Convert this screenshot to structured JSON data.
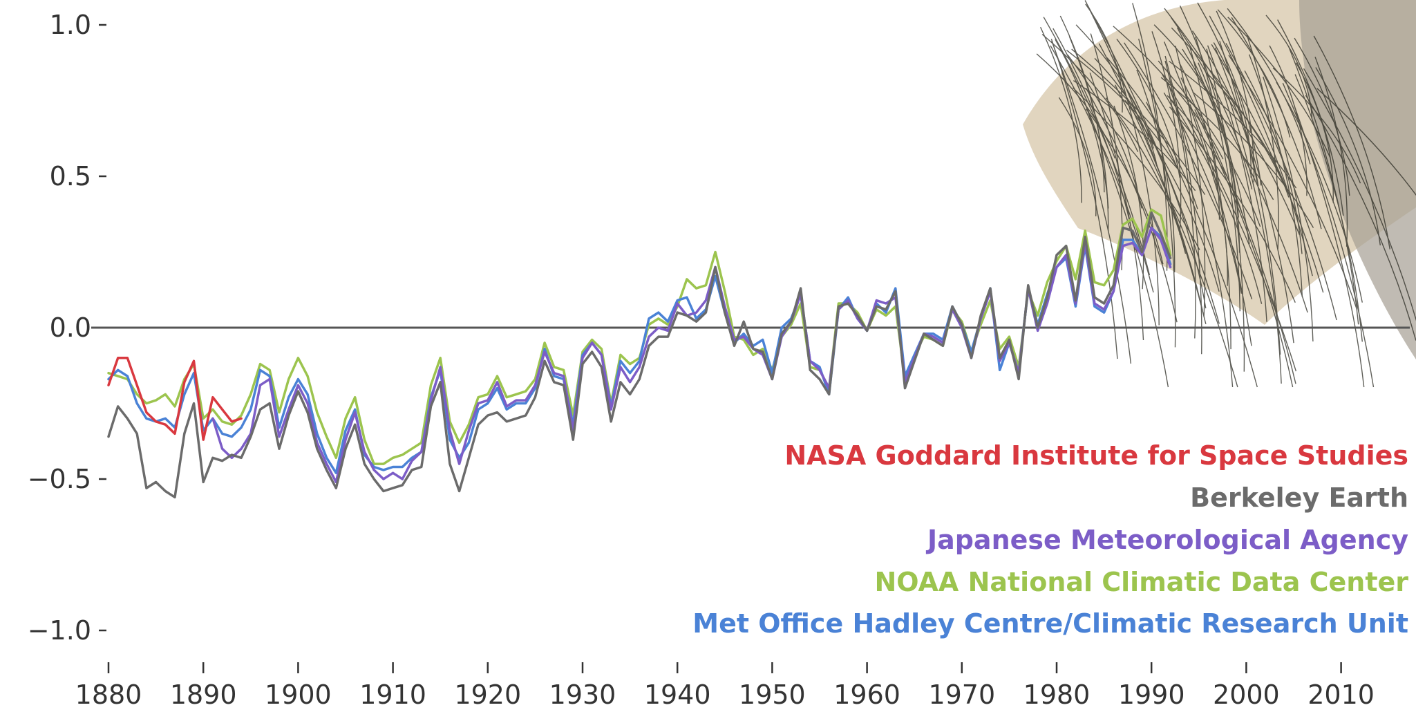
{
  "chart_data": {
    "type": "line",
    "title": "",
    "xlabel": "",
    "ylabel": "",
    "xlim": [
      1878,
      2017
    ],
    "ylim": [
      -1.0,
      1.0
    ],
    "zero_line": true,
    "grid": false,
    "legend_placement": "lower-right",
    "y_ticks": [
      1.0,
      0.5,
      0.0,
      -0.5,
      -1.0
    ],
    "y_tick_labels": [
      "1.0",
      "0.5",
      "0.0",
      "−0.5",
      "−1.0"
    ],
    "x_ticks": [
      1880,
      1890,
      1900,
      1910,
      1920,
      1930,
      1940,
      1950,
      1960,
      1970,
      1980,
      1990,
      2000,
      2010
    ],
    "x_tick_labels": [
      "1880",
      "1890",
      "1900",
      "1910",
      "1920",
      "1930",
      "1940",
      "1950",
      "1960",
      "1970",
      "1980",
      "1990",
      "2000",
      "2010"
    ],
    "series": [
      {
        "name": "NASA Goddard Institute for Space Studies",
        "color": "#d9383f",
        "x": [
          1880,
          1881,
          1882,
          1883,
          1884,
          1885,
          1886,
          1887,
          1888,
          1889,
          1890,
          1891,
          1892,
          1893,
          1894
        ],
        "y": [
          -0.19,
          -0.1,
          -0.1,
          -0.19,
          -0.28,
          -0.31,
          -0.32,
          -0.35,
          -0.18,
          -0.11,
          -0.37,
          -0.23,
          -0.27,
          -0.31,
          -0.3
        ]
      },
      {
        "name": "Berkeley Earth",
        "color": "#6b6b6b",
        "x": [
          1880,
          1881,
          1882,
          1883,
          1884,
          1885,
          1886,
          1887,
          1888,
          1889,
          1890,
          1891,
          1892,
          1893,
          1894,
          1895,
          1896,
          1897,
          1898,
          1899,
          1900,
          1901,
          1902,
          1903,
          1904,
          1905,
          1906,
          1907,
          1908,
          1909,
          1910,
          1911,
          1912,
          1913,
          1914,
          1915,
          1916,
          1917,
          1918,
          1919,
          1920,
          1921,
          1922,
          1923,
          1924,
          1925,
          1926,
          1927,
          1928,
          1929,
          1930,
          1931,
          1932,
          1933,
          1934,
          1935,
          1936,
          1937,
          1938,
          1939,
          1940,
          1941,
          1942,
          1943,
          1944,
          1945,
          1946,
          1947,
          1948,
          1949,
          1950,
          1951,
          1952,
          1953,
          1954,
          1955,
          1956,
          1957,
          1958,
          1959,
          1960,
          1961,
          1962,
          1963,
          1964,
          1965,
          1966,
          1967,
          1968,
          1969,
          1970,
          1971,
          1972,
          1973,
          1974,
          1975,
          1976,
          1977,
          1978,
          1979,
          1980,
          1981,
          1982,
          1983,
          1984,
          1985,
          1986,
          1987,
          1988,
          1989,
          1990,
          1991,
          1992
        ],
        "y": [
          -0.36,
          -0.26,
          -0.3,
          -0.35,
          -0.53,
          -0.51,
          -0.54,
          -0.56,
          -0.35,
          -0.25,
          -0.51,
          -0.43,
          -0.44,
          -0.42,
          -0.43,
          -0.36,
          -0.27,
          -0.25,
          -0.4,
          -0.29,
          -0.21,
          -0.28,
          -0.4,
          -0.47,
          -0.53,
          -0.4,
          -0.32,
          -0.45,
          -0.5,
          -0.54,
          -0.53,
          -0.52,
          -0.47,
          -0.46,
          -0.26,
          -0.18,
          -0.45,
          -0.54,
          -0.43,
          -0.32,
          -0.29,
          -0.28,
          -0.31,
          -0.3,
          -0.29,
          -0.23,
          -0.11,
          -0.18,
          -0.19,
          -0.37,
          -0.12,
          -0.08,
          -0.13,
          -0.31,
          -0.18,
          -0.22,
          -0.17,
          -0.06,
          -0.03,
          -0.03,
          0.05,
          0.04,
          0.02,
          0.05,
          0.2,
          0.05,
          -0.06,
          0.02,
          -0.07,
          -0.08,
          -0.17,
          -0.02,
          0.02,
          0.13,
          -0.14,
          -0.17,
          -0.22,
          0.07,
          0.08,
          0.04,
          -0.01,
          0.07,
          0.06,
          0.12,
          -0.2,
          -0.11,
          -0.02,
          -0.04,
          -0.06,
          0.07,
          0.01,
          -0.1,
          0.04,
          0.13,
          -0.1,
          -0.04,
          -0.17,
          0.14,
          0.0,
          0.1,
          0.24,
          0.27,
          0.09,
          0.3,
          0.1,
          0.08,
          0.14,
          0.33,
          0.32,
          0.25,
          0.38,
          0.31,
          0.23
        ]
      },
      {
        "name": "Japanese Meteorological Agency",
        "color": "#7c5dc7",
        "x": [
          1891,
          1892,
          1893,
          1894,
          1895,
          1896,
          1897,
          1898,
          1899,
          1900,
          1901,
          1902,
          1903,
          1904,
          1905,
          1906,
          1907,
          1908,
          1909,
          1910,
          1911,
          1912,
          1913,
          1914,
          1915,
          1916,
          1917,
          1918,
          1919,
          1920,
          1921,
          1922,
          1923,
          1924,
          1925,
          1926,
          1927,
          1928,
          1929,
          1930,
          1931,
          1932,
          1933,
          1934,
          1935,
          1936,
          1937,
          1938,
          1939,
          1940,
          1941,
          1942,
          1943,
          1944,
          1945,
          1946,
          1947,
          1948,
          1949,
          1950,
          1951,
          1952,
          1953,
          1954,
          1955,
          1956,
          1957,
          1958,
          1959,
          1960,
          1961,
          1962,
          1963,
          1964,
          1965,
          1966,
          1967,
          1968,
          1969,
          1970,
          1971,
          1972,
          1973,
          1974,
          1975,
          1976,
          1977,
          1978,
          1979,
          1980,
          1981,
          1982,
          1983,
          1984,
          1985,
          1986,
          1987,
          1988,
          1989,
          1990,
          1991,
          1992
        ],
        "y": [
          -0.3,
          -0.4,
          -0.43,
          -0.4,
          -0.35,
          -0.19,
          -0.17,
          -0.36,
          -0.27,
          -0.19,
          -0.25,
          -0.38,
          -0.45,
          -0.51,
          -0.37,
          -0.28,
          -0.41,
          -0.47,
          -0.5,
          -0.48,
          -0.5,
          -0.44,
          -0.41,
          -0.24,
          -0.13,
          -0.34,
          -0.45,
          -0.34,
          -0.25,
          -0.24,
          -0.18,
          -0.26,
          -0.24,
          -0.24,
          -0.19,
          -0.08,
          -0.15,
          -0.16,
          -0.34,
          -0.1,
          -0.05,
          -0.09,
          -0.27,
          -0.13,
          -0.18,
          -0.13,
          -0.03,
          0.0,
          -0.01,
          0.08,
          0.04,
          0.05,
          0.09,
          0.2,
          0.07,
          -0.04,
          -0.03,
          -0.07,
          -0.09,
          -0.17,
          -0.03,
          0.02,
          0.11,
          -0.11,
          -0.14,
          -0.2,
          0.06,
          0.09,
          0.03,
          -0.01,
          0.09,
          0.08,
          0.1,
          -0.18,
          -0.1,
          -0.02,
          -0.03,
          -0.05,
          0.06,
          0.0,
          -0.1,
          0.03,
          0.12,
          -0.11,
          -0.05,
          -0.15,
          0.13,
          -0.01,
          0.08,
          0.2,
          0.24,
          0.08,
          0.28,
          0.08,
          0.06,
          0.12,
          0.27,
          0.28,
          0.24,
          0.33,
          0.29,
          0.2
        ]
      },
      {
        "name": "NOAA National Climatic Data Center",
        "color": "#9cc44e",
        "x": [
          1880,
          1881,
          1882,
          1883,
          1884,
          1885,
          1886,
          1887,
          1888,
          1889,
          1890,
          1891,
          1892,
          1893,
          1894,
          1895,
          1896,
          1897,
          1898,
          1899,
          1900,
          1901,
          1902,
          1903,
          1904,
          1905,
          1906,
          1907,
          1908,
          1909,
          1910,
          1911,
          1912,
          1913,
          1914,
          1915,
          1916,
          1917,
          1918,
          1919,
          1920,
          1921,
          1922,
          1923,
          1924,
          1925,
          1926,
          1927,
          1928,
          1929,
          1930,
          1931,
          1932,
          1933,
          1934,
          1935,
          1936,
          1937,
          1938,
          1939,
          1940,
          1941,
          1942,
          1943,
          1944,
          1945,
          1946,
          1947,
          1948,
          1949,
          1950,
          1951,
          1952,
          1953,
          1954,
          1955,
          1956,
          1957,
          1958,
          1959,
          1960,
          1961,
          1962,
          1963,
          1964,
          1965,
          1966,
          1967,
          1968,
          1969,
          1970,
          1971,
          1972,
          1973,
          1974,
          1975,
          1976,
          1977,
          1978,
          1979,
          1980,
          1981,
          1982,
          1983,
          1984,
          1985,
          1986,
          1987,
          1988,
          1989,
          1990,
          1991,
          1992
        ],
        "y": [
          -0.15,
          -0.16,
          -0.17,
          -0.22,
          -0.25,
          -0.24,
          -0.22,
          -0.26,
          -0.17,
          -0.12,
          -0.3,
          -0.27,
          -0.31,
          -0.32,
          -0.29,
          -0.22,
          -0.12,
          -0.14,
          -0.28,
          -0.17,
          -0.1,
          -0.16,
          -0.28,
          -0.36,
          -0.43,
          -0.3,
          -0.23,
          -0.37,
          -0.45,
          -0.45,
          -0.43,
          -0.42,
          -0.4,
          -0.38,
          -0.19,
          -0.1,
          -0.31,
          -0.38,
          -0.32,
          -0.23,
          -0.22,
          -0.16,
          -0.23,
          -0.22,
          -0.21,
          -0.17,
          -0.05,
          -0.13,
          -0.14,
          -0.29,
          -0.08,
          -0.04,
          -0.07,
          -0.25,
          -0.09,
          -0.12,
          -0.1,
          0.01,
          0.03,
          0.01,
          0.07,
          0.16,
          0.13,
          0.14,
          0.25,
          0.12,
          -0.03,
          -0.04,
          -0.09,
          -0.07,
          -0.14,
          -0.03,
          0.01,
          0.08,
          -0.13,
          -0.14,
          -0.2,
          0.08,
          0.08,
          0.05,
          -0.01,
          0.06,
          0.04,
          0.07,
          -0.17,
          -0.09,
          -0.03,
          -0.04,
          -0.06,
          0.06,
          0.02,
          -0.08,
          0.01,
          0.09,
          -0.07,
          -0.03,
          -0.13,
          0.12,
          0.04,
          0.15,
          0.22,
          0.27,
          0.16,
          0.32,
          0.15,
          0.14,
          0.19,
          0.34,
          0.36,
          0.3,
          0.39,
          0.37,
          0.24
        ]
      },
      {
        "name": "Met Office Hadley Centre/Climatic Research Unit",
        "color": "#4a82d6",
        "x": [
          1880,
          1881,
          1882,
          1883,
          1884,
          1885,
          1886,
          1887,
          1888,
          1889,
          1890,
          1891,
          1892,
          1893,
          1894,
          1895,
          1896,
          1897,
          1898,
          1899,
          1900,
          1901,
          1902,
          1903,
          1904,
          1905,
          1906,
          1907,
          1908,
          1909,
          1910,
          1911,
          1912,
          1913,
          1914,
          1915,
          1916,
          1917,
          1918,
          1919,
          1920,
          1921,
          1922,
          1923,
          1924,
          1925,
          1926,
          1927,
          1928,
          1929,
          1930,
          1931,
          1932,
          1933,
          1934,
          1935,
          1936,
          1937,
          1938,
          1939,
          1940,
          1941,
          1942,
          1943,
          1944,
          1945,
          1946,
          1947,
          1948,
          1949,
          1950,
          1951,
          1952,
          1953,
          1954,
          1955,
          1956,
          1957,
          1958,
          1959,
          1960,
          1961,
          1962,
          1963,
          1964,
          1965,
          1966,
          1967,
          1968,
          1969,
          1970,
          1971,
          1972,
          1973,
          1974,
          1975,
          1976,
          1977,
          1978,
          1979,
          1980,
          1981,
          1982,
          1983,
          1984,
          1985,
          1986,
          1987,
          1988,
          1989,
          1990,
          1991,
          1992
        ],
        "y": [
          -0.17,
          -0.14,
          -0.16,
          -0.25,
          -0.3,
          -0.31,
          -0.3,
          -0.33,
          -0.22,
          -0.15,
          -0.34,
          -0.3,
          -0.35,
          -0.36,
          -0.33,
          -0.27,
          -0.14,
          -0.16,
          -0.33,
          -0.23,
          -0.17,
          -0.22,
          -0.35,
          -0.43,
          -0.48,
          -0.34,
          -0.27,
          -0.42,
          -0.46,
          -0.47,
          -0.46,
          -0.46,
          -0.43,
          -0.41,
          -0.23,
          -0.14,
          -0.37,
          -0.43,
          -0.38,
          -0.27,
          -0.25,
          -0.2,
          -0.27,
          -0.25,
          -0.25,
          -0.2,
          -0.07,
          -0.16,
          -0.17,
          -0.32,
          -0.09,
          -0.05,
          -0.09,
          -0.26,
          -0.11,
          -0.15,
          -0.11,
          0.03,
          0.05,
          0.02,
          0.09,
          0.1,
          0.03,
          0.06,
          0.17,
          0.05,
          -0.05,
          -0.02,
          -0.06,
          -0.04,
          -0.15,
          0.0,
          0.03,
          0.11,
          -0.11,
          -0.13,
          -0.22,
          0.06,
          0.1,
          0.03,
          -0.01,
          0.08,
          0.05,
          0.13,
          -0.16,
          -0.09,
          -0.02,
          -0.02,
          -0.04,
          0.07,
          0.01,
          -0.08,
          0.03,
          0.13,
          -0.14,
          -0.05,
          -0.15,
          0.13,
          0.01,
          0.11,
          0.2,
          0.23,
          0.07,
          0.27,
          0.07,
          0.05,
          0.12,
          0.29,
          0.29,
          0.24,
          0.33,
          0.3,
          0.21
        ]
      }
    ]
  }
}
